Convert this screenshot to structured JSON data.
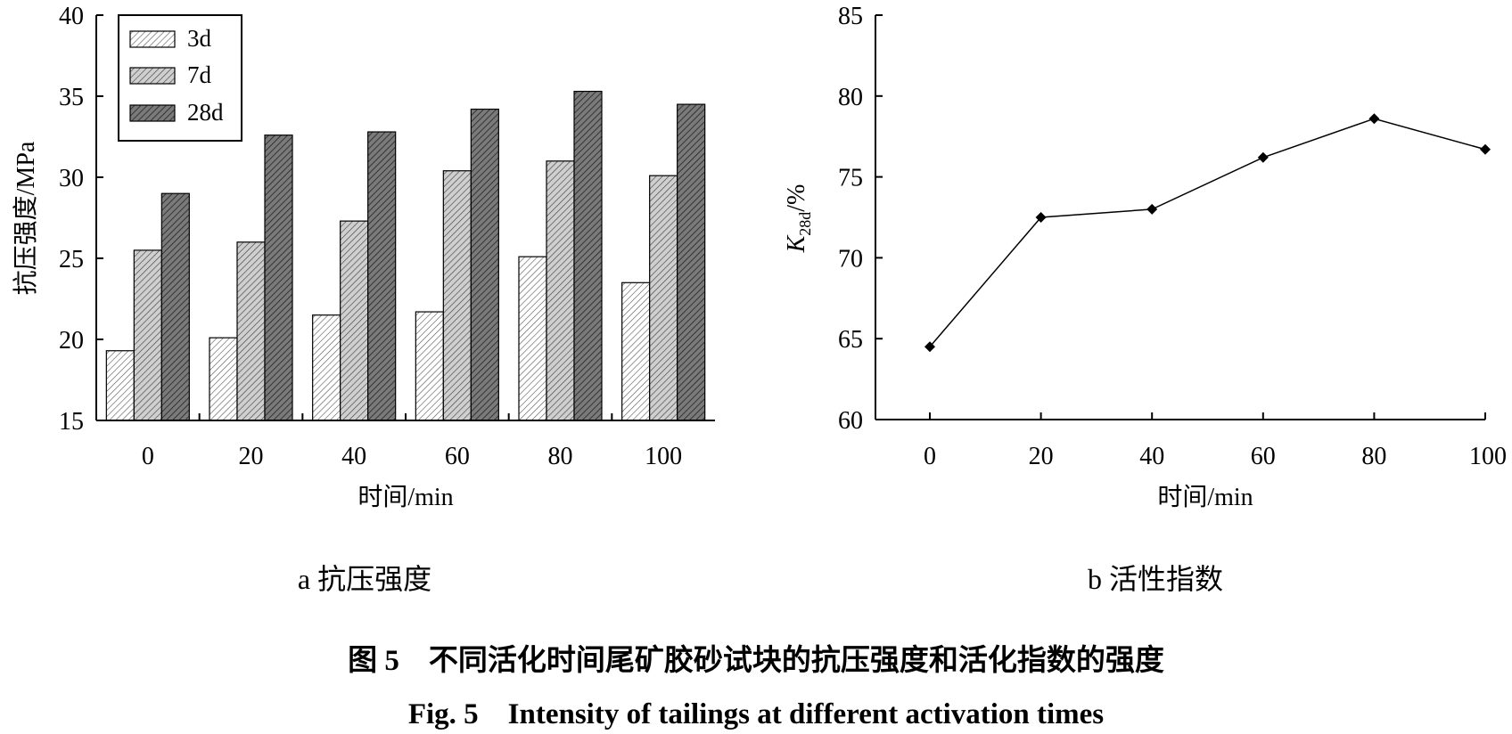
{
  "figure": {
    "caption_cn": "图 5　不同活化时间尾矿胶砂试块的抗压强度和活化指数的强度",
    "caption_en": "Fig. 5　Intensity of tailings at different activation times"
  },
  "chart_data": [
    {
      "type": "bar",
      "sublabel": "a 抗压强度",
      "xlabel": "时间/min",
      "ylabel": "抗压强度/MPa",
      "ylim": [
        15,
        40
      ],
      "yticks": [
        "15",
        "20",
        "25",
        "30",
        "35",
        "40"
      ],
      "categories": [
        "0",
        "20",
        "40",
        "60",
        "80",
        "100"
      ],
      "legend_position": "top-left",
      "grid": false,
      "series": [
        {
          "name": "3d",
          "values": [
            19.3,
            20.1,
            21.5,
            21.7,
            25.1,
            23.5
          ],
          "color": "#ffffff",
          "hatch": "light"
        },
        {
          "name": "7d",
          "values": [
            25.5,
            26.0,
            27.3,
            30.4,
            31.0,
            30.1
          ],
          "color": "#c8c8c8",
          "hatch": "medium"
        },
        {
          "name": "28d",
          "values": [
            29.0,
            32.6,
            32.8,
            34.2,
            35.3,
            34.5
          ],
          "color": "#6e6e6e",
          "hatch": "dark"
        }
      ]
    },
    {
      "type": "line",
      "sublabel": "b 活性指数",
      "xlabel": "时间/min",
      "ylabel_main": "K",
      "ylabel_sub": "28d",
      "ylabel_tail": "/%",
      "ylim": [
        60,
        85
      ],
      "yticks": [
        "60",
        "65",
        "70",
        "75",
        "80",
        "85"
      ],
      "xticks": [
        "0",
        "20",
        "40",
        "60",
        "80",
        "100"
      ],
      "grid": false,
      "x": [
        0,
        20,
        40,
        60,
        80,
        100
      ],
      "y": [
        64.5,
        72.5,
        73.0,
        76.2,
        78.6,
        76.7
      ],
      "marker": "diamond",
      "color": "#000000"
    }
  ]
}
